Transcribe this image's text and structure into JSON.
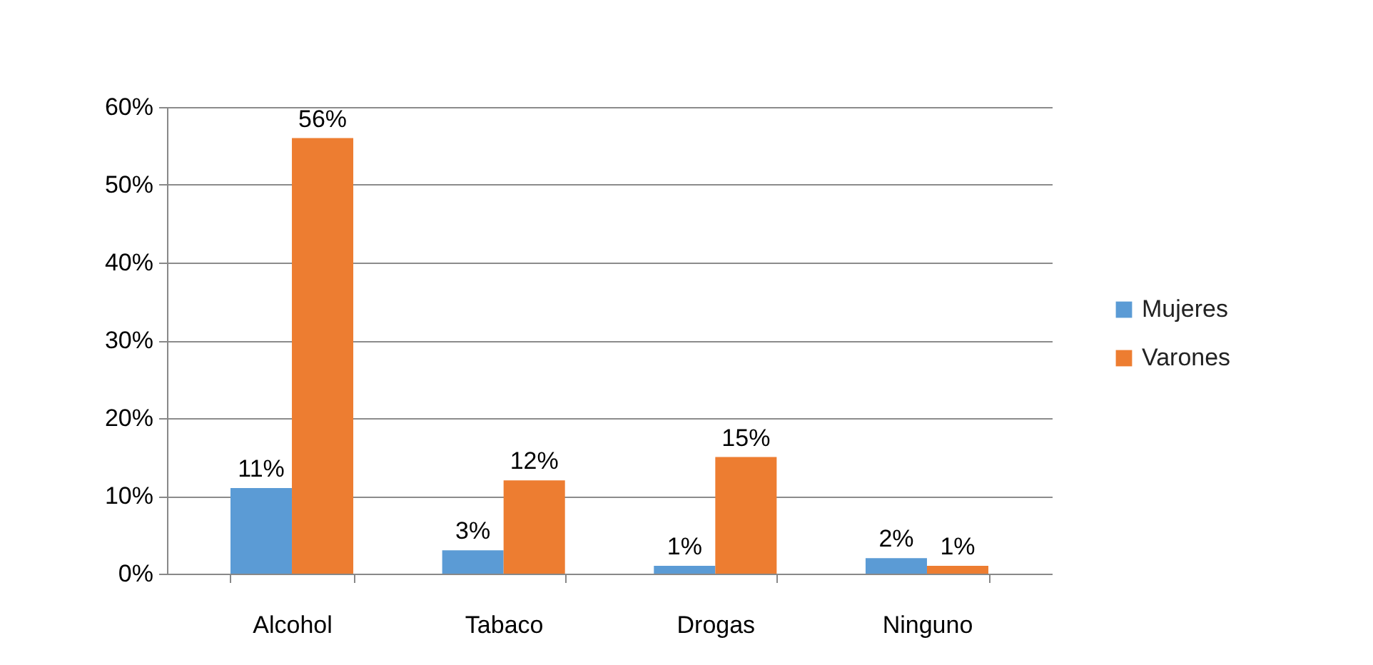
{
  "chart_data": {
    "type": "bar",
    "categories": [
      "Alcohol",
      "Tabaco",
      "Drogas",
      "Ninguno"
    ],
    "series": [
      {
        "name": "Mujeres",
        "color": "#5b9bd5",
        "values": [
          11,
          3,
          1,
          2
        ],
        "value_labels": [
          "11%",
          "3%",
          "1%",
          "2%"
        ]
      },
      {
        "name": "Varones",
        "color": "#ed7d31",
        "values": [
          56,
          12,
          15,
          1
        ],
        "value_labels": [
          "56%",
          "12%",
          "15%",
          "1%"
        ]
      }
    ],
    "ylim": [
      0,
      60
    ],
    "yticks": [
      {
        "value": 0,
        "label": "0%"
      },
      {
        "value": 10,
        "label": "10%"
      },
      {
        "value": 20,
        "label": "20%"
      },
      {
        "value": 30,
        "label": "30%"
      },
      {
        "value": 40,
        "label": "40%"
      },
      {
        "value": 50,
        "label": "50%"
      },
      {
        "value": 60,
        "label": "60%"
      }
    ],
    "grid": "y",
    "legend": "right"
  }
}
